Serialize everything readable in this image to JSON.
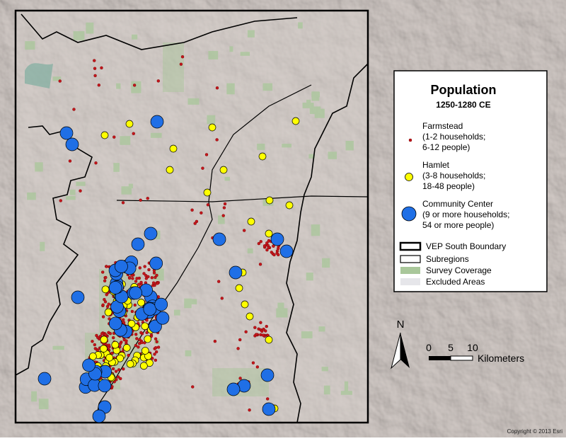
{
  "legend": {
    "title": "Population",
    "subtitle": "1250-1280 CE",
    "items": [
      {
        "label": "Farmstead",
        "desc": [
          "(1-2 households;",
          "6-12 people)"
        ]
      },
      {
        "label": "Hamlet",
        "desc": [
          "(3-8 households;",
          "18-48 people)"
        ]
      },
      {
        "label": "Community Center",
        "desc": [
          "(9 or more households;",
          "54 or more people)"
        ]
      }
    ],
    "areas": [
      "VEP South Boundary",
      "Subregions",
      "Survey Coverage",
      "Excluded Areas"
    ]
  },
  "north_arrow": "N",
  "scale_bar": {
    "ticks": [
      0,
      5,
      10
    ],
    "unit": "Kilometers"
  },
  "copyright": "Copyright © 2013 Esri"
}
